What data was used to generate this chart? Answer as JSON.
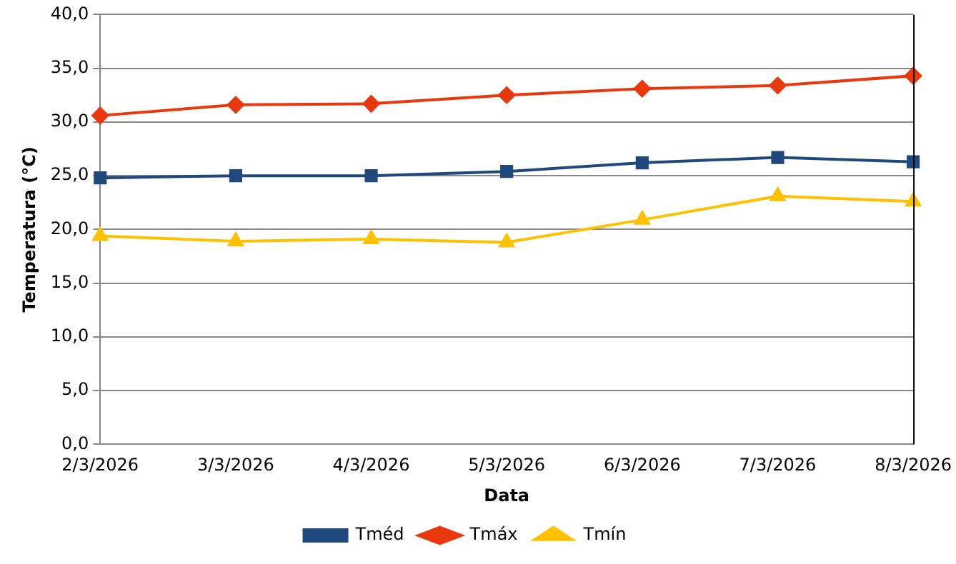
{
  "chart_data": {
    "type": "line",
    "xlabel": "Data",
    "ylabel": "Temperatura (°C)",
    "categories": [
      "2/3/2026",
      "3/3/2026",
      "4/3/2026",
      "5/3/2026",
      "6/3/2026",
      "7/3/2026",
      "8/3/2026"
    ],
    "series": [
      {
        "name": "Tméd",
        "color": "#1f497d",
        "marker": "square",
        "values": [
          24.8,
          25.0,
          25.0,
          25.4,
          26.2,
          26.7,
          26.3
        ]
      },
      {
        "name": "Tmáx",
        "color": "#e8380d",
        "marker": "diamond",
        "values": [
          30.6,
          31.6,
          31.7,
          32.5,
          33.1,
          33.4,
          34.3
        ]
      },
      {
        "name": "Tmín",
        "color": "#ffc000",
        "marker": "triangle",
        "values": [
          19.4,
          18.9,
          19.1,
          18.8,
          20.9,
          23.1,
          22.6
        ]
      }
    ],
    "ylim": [
      0,
      40
    ],
    "yticks": [
      {
        "value": 0,
        "label": "0,0"
      },
      {
        "value": 5,
        "label": "5,0"
      },
      {
        "value": 10,
        "label": "10,0"
      },
      {
        "value": 15,
        "label": "15,0"
      },
      {
        "value": 20,
        "label": "20,0"
      },
      {
        "value": 25,
        "label": "25,0"
      },
      {
        "value": 30,
        "label": "30,0"
      },
      {
        "value": 35,
        "label": "35,0"
      },
      {
        "value": 40,
        "label": "40,0"
      }
    ],
    "grid": "y",
    "legend": "bottom",
    "line_style": "solid"
  }
}
